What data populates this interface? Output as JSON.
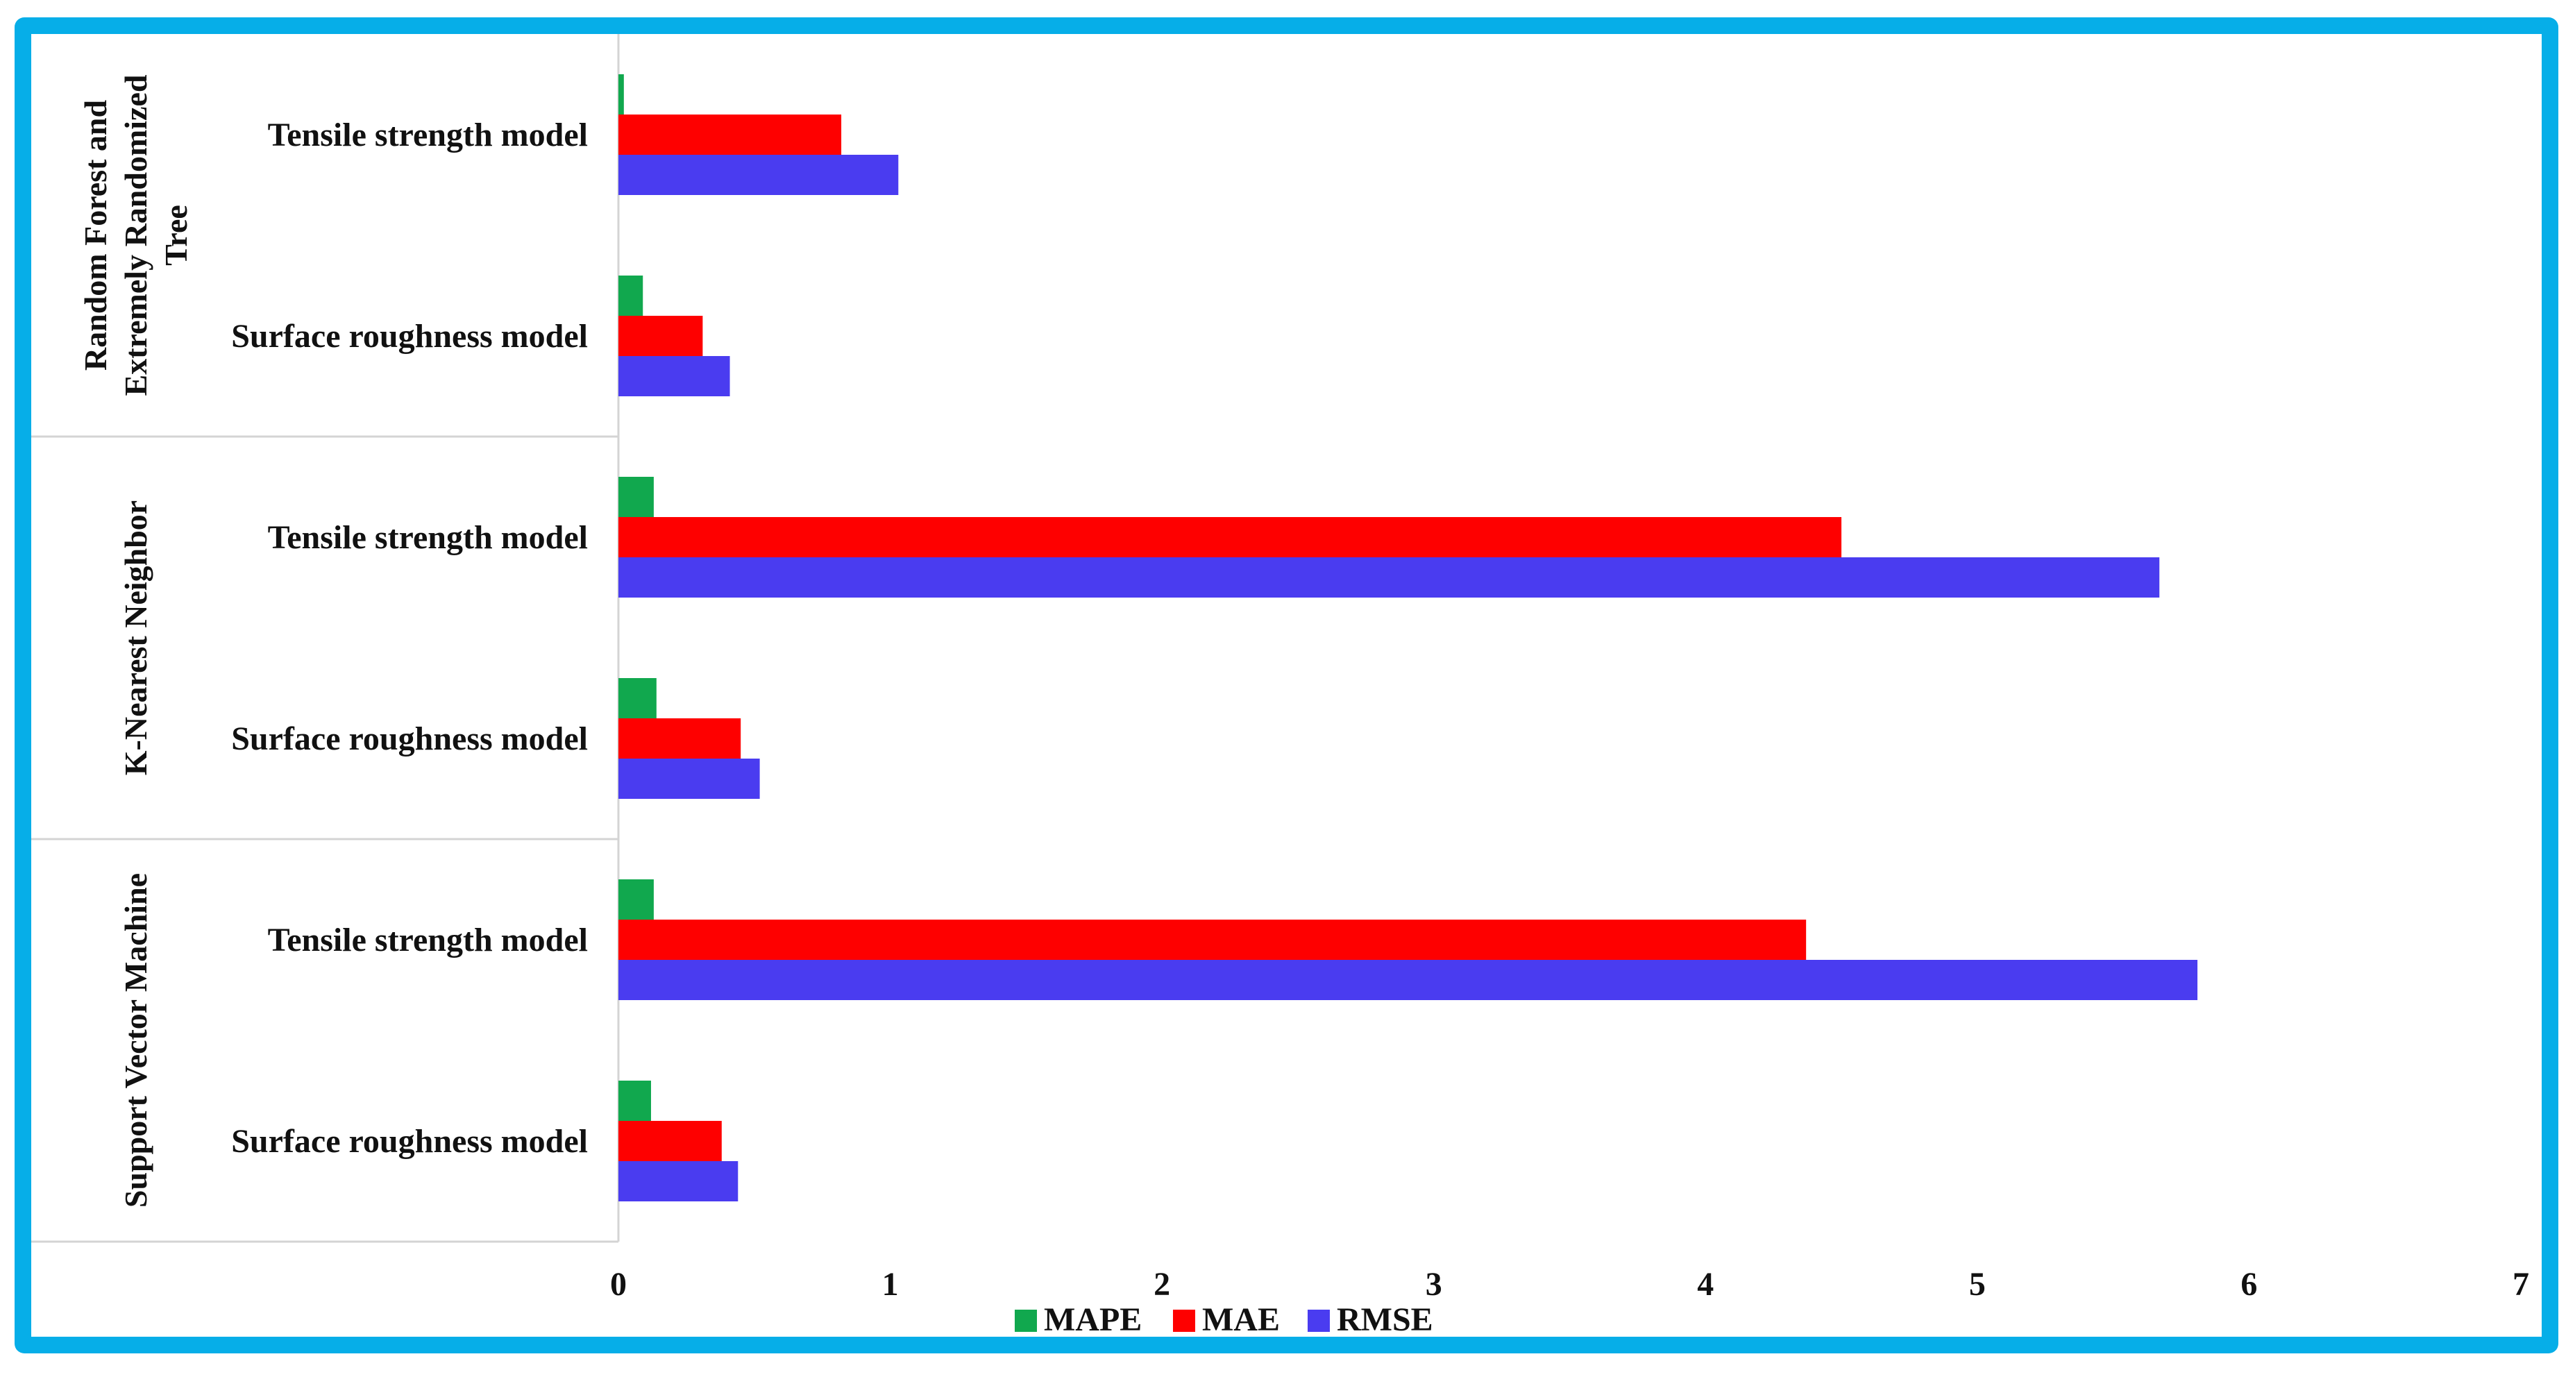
{
  "frame": {
    "border_color": "#06aee8"
  },
  "chart_data": {
    "type": "bar",
    "orientation": "horizontal",
    "title": "",
    "xlabel": "",
    "ylabel": "",
    "xlim": [
      0,
      7
    ],
    "x_ticks": [
      "0",
      "1",
      "2",
      "3",
      "4",
      "5",
      "6",
      "7"
    ],
    "grid": false,
    "legend_position": "bottom",
    "groups": [
      {
        "name": "Random Forest and Extremely Randomized Tree",
        "label_lines": [
          "Random Forest and",
          "Extremely Randomized",
          "Tree"
        ],
        "categories": [
          "Tensile strength model",
          "Surface roughness model"
        ]
      },
      {
        "name": "K-Nearest Neighbor",
        "label_lines": [
          "K-Nearest Neighbor"
        ],
        "categories": [
          "Tensile strength model",
          "Surface roughness model"
        ]
      },
      {
        "name": "Support Vector Machine",
        "label_lines": [
          "Support Vector Machine"
        ],
        "categories": [
          "Tensile strength model",
          "Surface roughness model"
        ]
      }
    ],
    "series": [
      {
        "name": "MAPE",
        "color": "#11a84e",
        "values": [
          0.02,
          0.09,
          0.13,
          0.14,
          0.13,
          0.12
        ]
      },
      {
        "name": "MAE",
        "color": "#fe0000",
        "values": [
          0.82,
          0.31,
          4.5,
          0.45,
          4.37,
          0.38
        ]
      },
      {
        "name": "RMSE",
        "color": "#4a3cf0",
        "values": [
          1.03,
          0.41,
          5.67,
          0.52,
          5.81,
          0.44
        ]
      }
    ]
  }
}
